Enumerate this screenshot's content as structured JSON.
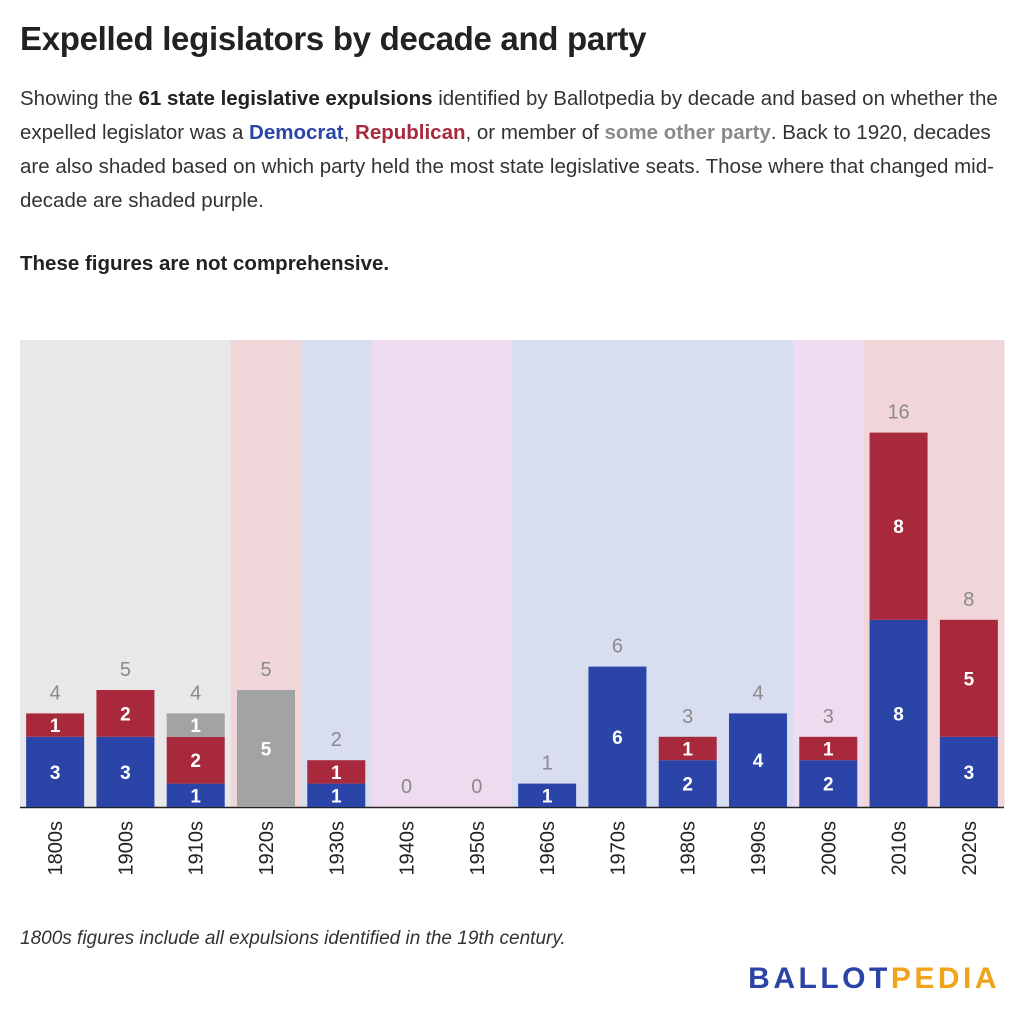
{
  "title": "Expelled legislators by decade and party",
  "description": {
    "p1": "Showing the ",
    "bold_count": "61 state legislative expulsions",
    "p2": " identified by Ballotpedia by decade and based on whether the expelled legislator was a ",
    "democrat": "Democrat",
    "comma": ", ",
    "republican": "Republican",
    "p3": ", or member of ",
    "other": "some other party",
    "p4": ". Back to 1920, decades are also shaded based on which party held the most state legislative seats. Those where that changed mid-decade are shaded purple."
  },
  "note": "These figures are not comprehensive.",
  "footnote": "1800s figures include all expulsions identified in the 19th century.",
  "logo": {
    "part1": "BALLOT",
    "part2": "PEDIA"
  },
  "colors": {
    "democrat": "#2b44a8",
    "republican": "#a8293c",
    "other": "#a3a3a3",
    "bg_gray": "#e8e8e8",
    "bg_red": "#f0d6d8",
    "bg_blue": "#d8ddf0",
    "bg_purple": "#efdbef"
  },
  "chart_data": {
    "type": "bar",
    "stacked": true,
    "categories": [
      "1800s",
      "1900s",
      "1910s",
      "1920s",
      "1930s",
      "1940s",
      "1950s",
      "1960s",
      "1970s",
      "1980s",
      "1990s",
      "2000s",
      "2010s",
      "2020s"
    ],
    "series": [
      {
        "name": "Democrat",
        "values": [
          3,
          3,
          1,
          0,
          1,
          0,
          0,
          1,
          6,
          2,
          4,
          2,
          8,
          3
        ]
      },
      {
        "name": "Republican",
        "values": [
          1,
          2,
          2,
          0,
          1,
          0,
          0,
          0,
          0,
          1,
          0,
          1,
          8,
          5
        ]
      },
      {
        "name": "Other",
        "values": [
          0,
          0,
          1,
          5,
          0,
          0,
          0,
          0,
          0,
          0,
          0,
          0,
          0,
          0
        ]
      }
    ],
    "totals": [
      4,
      5,
      4,
      5,
      2,
      0,
      0,
      1,
      6,
      3,
      4,
      3,
      16,
      8
    ],
    "background_shading": [
      "gray",
      "gray",
      "gray",
      "red",
      "blue",
      "purple",
      "purple",
      "blue",
      "blue",
      "blue",
      "blue",
      "purple",
      "red",
      "red"
    ],
    "ylim": [
      0,
      20
    ],
    "grid": false,
    "legend": "none"
  }
}
